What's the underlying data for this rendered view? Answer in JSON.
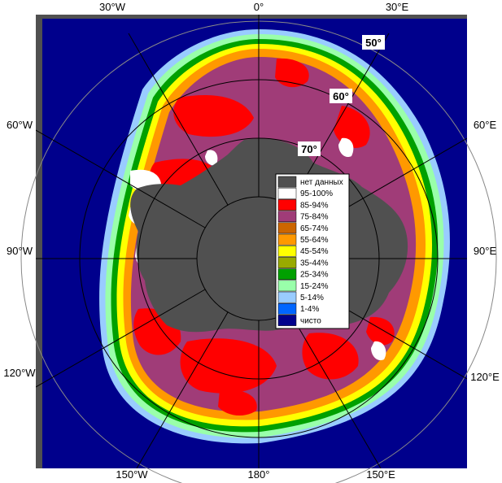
{
  "map": {
    "colors": {
      "ocean": "#00008c",
      "no_data": "#505050",
      "land_margin": "#000000"
    },
    "longitude_labels": {
      "top": [
        "30°W",
        "0°",
        "30°E"
      ],
      "left": [
        "60°W",
        "90°W",
        "120°W"
      ],
      "right": [
        "60°E",
        "90°E",
        "120°E"
      ],
      "bottom": [
        "150°W",
        "180°",
        "150°E"
      ]
    },
    "latitude_labels": [
      "50°",
      "60°",
      "70°"
    ]
  },
  "legend": {
    "items": [
      {
        "label": "нет данных",
        "color": "#505050"
      },
      {
        "label": "95-100%",
        "color": "#ffffff"
      },
      {
        "label": "85-94%",
        "color": "#ff0000"
      },
      {
        "label": "75-84%",
        "color": "#a03c78"
      },
      {
        "label": "65-74%",
        "color": "#cc6600"
      },
      {
        "label": "55-64%",
        "color": "#ff9900"
      },
      {
        "label": "45-54%",
        "color": "#ffff00"
      },
      {
        "label": "35-44%",
        "color": "#99aa00"
      },
      {
        "label": "25-34%",
        "color": "#00a000"
      },
      {
        "label": "15-24%",
        "color": "#99ffaa"
      },
      {
        "label": "5-14%",
        "color": "#99ccff"
      },
      {
        "label": "1-4%",
        "color": "#0066ff"
      },
      {
        "label": "чисто",
        "color": "#00008c"
      }
    ]
  }
}
